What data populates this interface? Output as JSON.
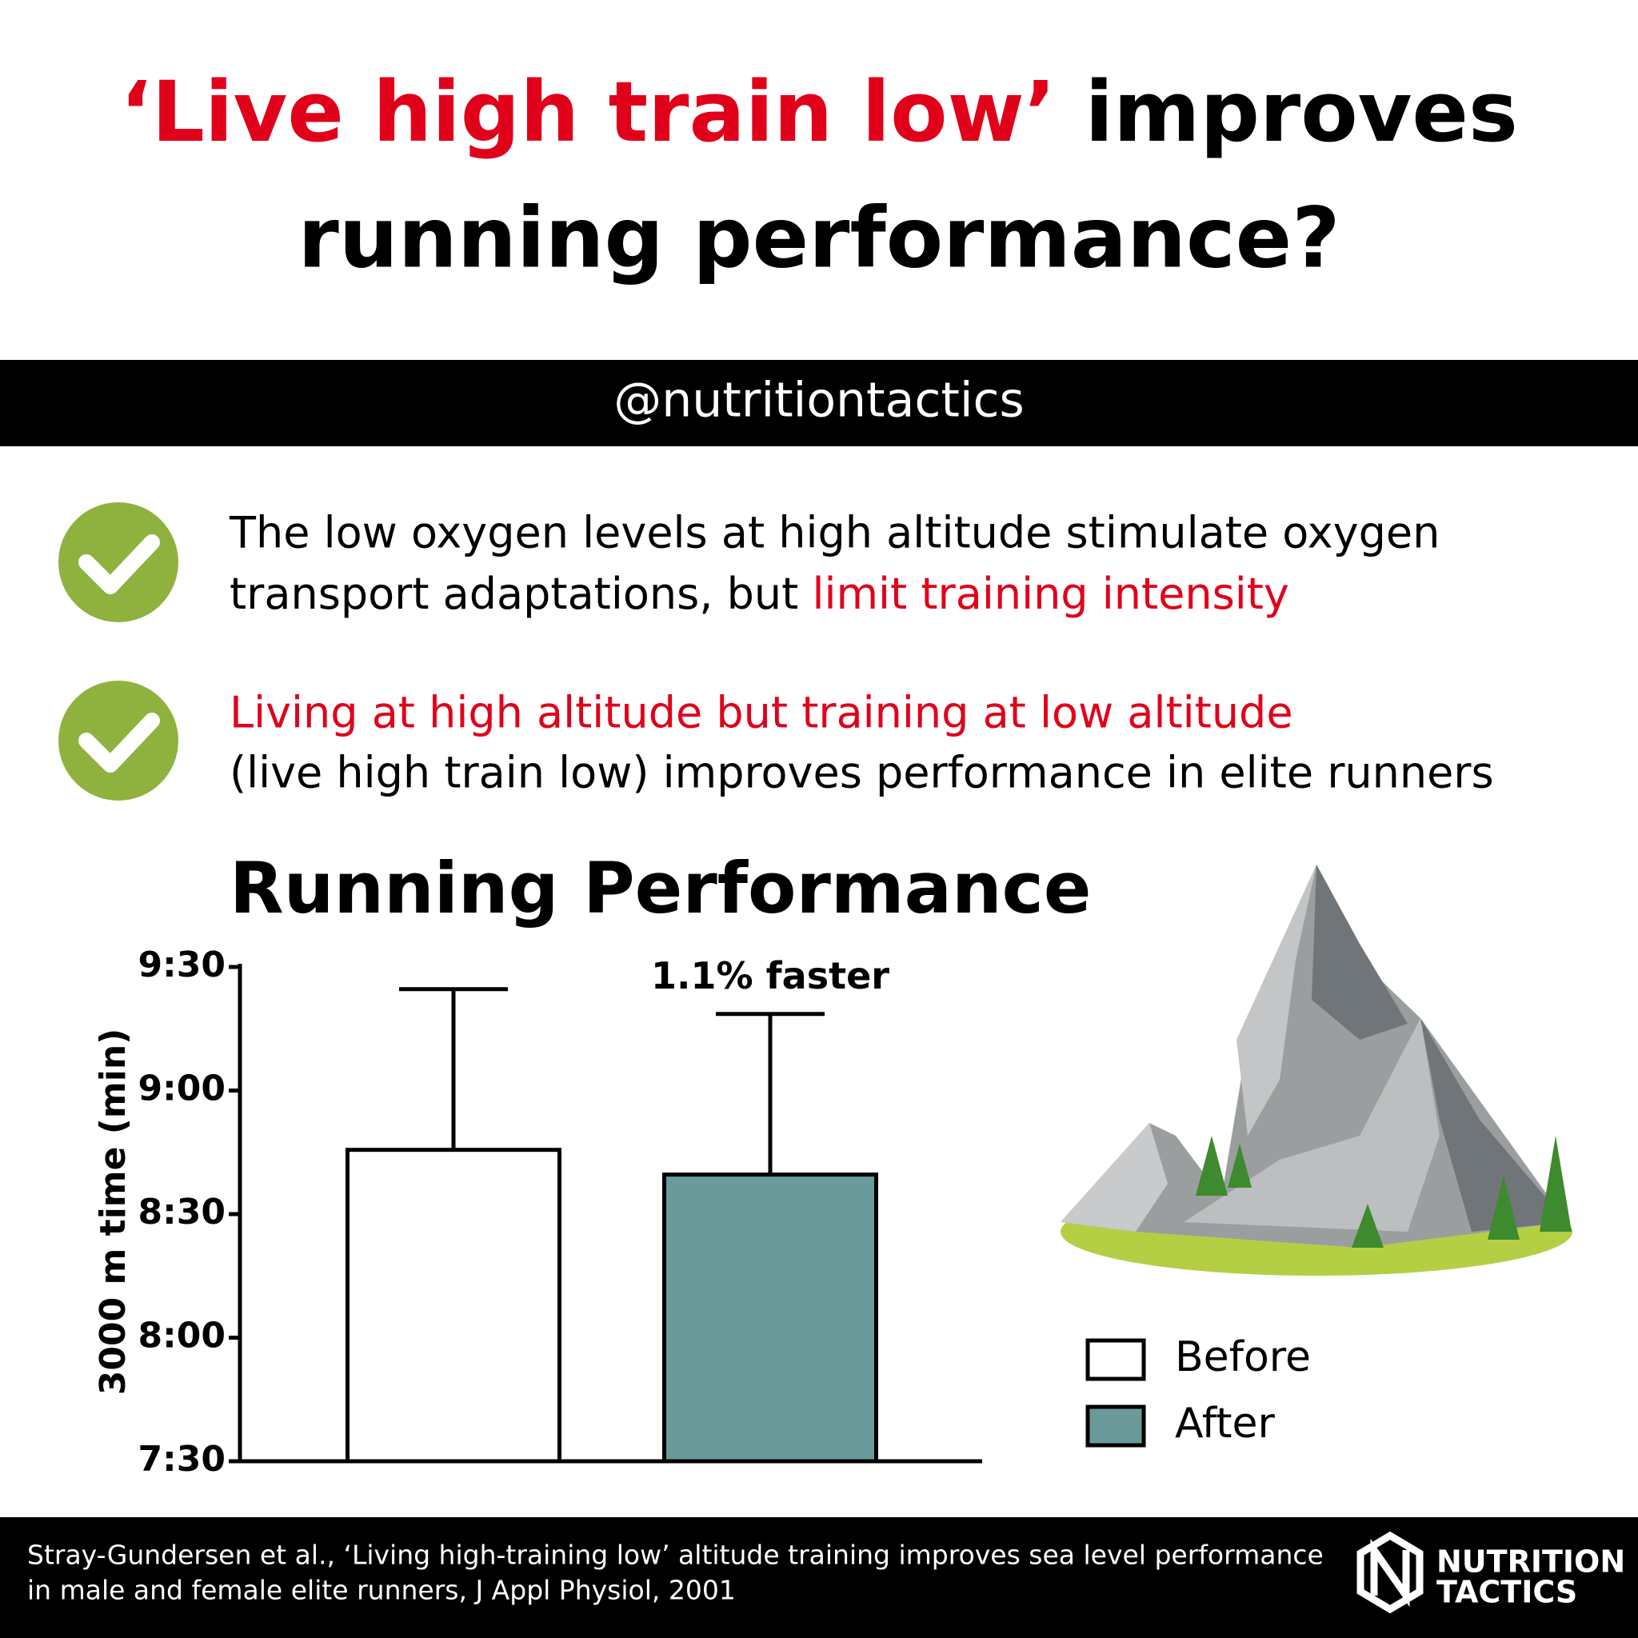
{
  "header": {
    "title_highlight": "‘Live high train low’",
    "title_line1": "improves",
    "title_line2": "running performance?",
    "handle": "@nutritiontactics"
  },
  "bullets": [
    {
      "line1": "The low oxygen levels at high altitude stimulate oxygen",
      "line2": "transport adaptations, but",
      "line2_highlight": "limit training intensity"
    },
    {
      "line1_highlight": "Living at high altitude but training at low altitude",
      "line2": "(live high train low) improves performance in elite runners"
    }
  ],
  "chart_data": {
    "type": "bar",
    "title": "Running Performance",
    "y_label": "3000 m time (min)",
    "series": [
      {
        "name": "Before",
        "color": "#ffffff",
        "values": [
          8.76
        ],
        "errors": [
          0.65
        ]
      },
      {
        "name": "After",
        "color": "#6a9a99",
        "values": [
          8.66
        ],
        "errors": [
          0.65
        ]
      }
    ],
    "annotation": "1.1% faster",
    "ylim": [
      7.5,
      9.5
    ],
    "yticks": [
      {
        "value": 7.5,
        "label": "7:30"
      },
      {
        "value": 8,
        "label": "8:00"
      },
      {
        "value": 8.5,
        "label": "8:30"
      },
      {
        "value": 9,
        "label": "9:00"
      },
      {
        "value": 9.5,
        "label": "9:30"
      }
    ]
  },
  "footer": {
    "citation_line1": "Stray-Gundersen et al., ‘Living high-training low’ altitude training improves sea level performance",
    "citation_line2": "in male and female elite runners, J Appl Physiol, 2001",
    "logo_line1": "NUTRITION",
    "logo_line2": "TACTICS"
  }
}
